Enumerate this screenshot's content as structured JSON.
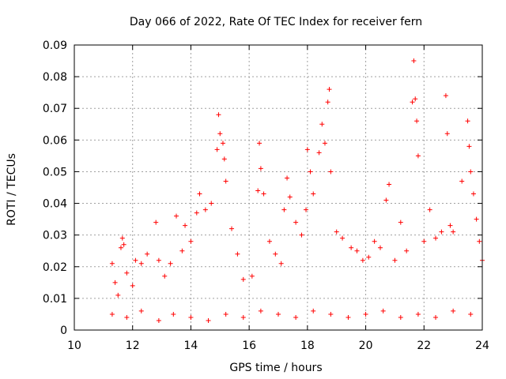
{
  "chart_data": {
    "type": "scatter",
    "title": "Day 066 of 2022, Rate Of TEC Index for receiver fern",
    "xlabel": "GPS time / hours",
    "ylabel": "ROTI / TECUs",
    "xlim": [
      10,
      24
    ],
    "ylim": [
      0,
      0.09
    ],
    "x_ticks": [
      10,
      12,
      14,
      16,
      18,
      20,
      22,
      24
    ],
    "x_tick_labels": [
      "10",
      "12",
      "14",
      "16",
      "18",
      "20",
      "22",
      "24"
    ],
    "y_ticks": [
      0,
      0.01,
      0.02,
      0.03,
      0.04,
      0.05,
      0.06,
      0.07,
      0.08,
      0.09
    ],
    "y_tick_labels": [
      "0",
      "0.01",
      "0.02",
      "0.03",
      "0.04",
      "0.05",
      "0.06",
      "0.07",
      "0.08",
      "0.09"
    ],
    "grid": true,
    "marker": "+",
    "color": "#ff0000",
    "series": [
      {
        "points": [
          [
            11.3,
            0.021
          ],
          [
            11.4,
            0.015
          ],
          [
            11.5,
            0.011
          ],
          [
            11.6,
            0.026
          ],
          [
            11.65,
            0.029
          ],
          [
            11.7,
            0.027
          ],
          [
            11.8,
            0.018
          ],
          [
            12.0,
            0.014
          ],
          [
            12.1,
            0.022
          ],
          [
            12.3,
            0.021
          ],
          [
            12.5,
            0.024
          ],
          [
            12.8,
            0.034
          ],
          [
            12.9,
            0.022
          ],
          [
            13.1,
            0.017
          ],
          [
            13.3,
            0.021
          ],
          [
            13.5,
            0.036
          ],
          [
            13.7,
            0.025
          ],
          [
            13.8,
            0.033
          ],
          [
            14.0,
            0.028
          ],
          [
            14.2,
            0.037
          ],
          [
            14.3,
            0.043
          ],
          [
            14.5,
            0.038
          ],
          [
            14.7,
            0.04
          ],
          [
            14.9,
            0.057
          ],
          [
            14.95,
            0.068
          ],
          [
            15.0,
            0.062
          ],
          [
            15.1,
            0.059
          ],
          [
            15.15,
            0.054
          ],
          [
            15.2,
            0.047
          ],
          [
            15.4,
            0.032
          ],
          [
            15.6,
            0.024
          ],
          [
            15.8,
            0.016
          ],
          [
            16.1,
            0.017
          ],
          [
            16.3,
            0.044
          ],
          [
            16.35,
            0.059
          ],
          [
            16.4,
            0.051
          ],
          [
            16.5,
            0.043
          ],
          [
            16.7,
            0.028
          ],
          [
            16.9,
            0.024
          ],
          [
            17.1,
            0.021
          ],
          [
            17.2,
            0.038
          ],
          [
            17.3,
            0.048
          ],
          [
            17.4,
            0.042
          ],
          [
            17.6,
            0.034
          ],
          [
            17.8,
            0.03
          ],
          [
            17.95,
            0.038
          ],
          [
            18.0,
            0.057
          ],
          [
            18.1,
            0.05
          ],
          [
            18.2,
            0.043
          ],
          [
            18.4,
            0.056
          ],
          [
            18.5,
            0.065
          ],
          [
            18.6,
            0.059
          ],
          [
            18.7,
            0.072
          ],
          [
            18.75,
            0.076
          ],
          [
            18.8,
            0.05
          ],
          [
            19.0,
            0.031
          ],
          [
            19.2,
            0.029
          ],
          [
            19.5,
            0.026
          ],
          [
            19.7,
            0.025
          ],
          [
            19.9,
            0.022
          ],
          [
            20.1,
            0.023
          ],
          [
            20.3,
            0.028
          ],
          [
            20.5,
            0.026
          ],
          [
            20.7,
            0.041
          ],
          [
            20.8,
            0.046
          ],
          [
            21.0,
            0.022
          ],
          [
            21.2,
            0.034
          ],
          [
            21.4,
            0.025
          ],
          [
            21.6,
            0.072
          ],
          [
            21.65,
            0.085
          ],
          [
            21.7,
            0.073
          ],
          [
            21.75,
            0.066
          ],
          [
            21.8,
            0.055
          ],
          [
            22.0,
            0.028
          ],
          [
            22.2,
            0.038
          ],
          [
            22.4,
            0.029
          ],
          [
            22.6,
            0.031
          ],
          [
            22.75,
            0.074
          ],
          [
            22.8,
            0.062
          ],
          [
            22.9,
            0.033
          ],
          [
            23.0,
            0.031
          ],
          [
            23.3,
            0.047
          ],
          [
            23.5,
            0.066
          ],
          [
            23.55,
            0.058
          ],
          [
            23.6,
            0.05
          ],
          [
            23.7,
            0.043
          ],
          [
            23.8,
            0.035
          ],
          [
            23.9,
            0.028
          ],
          [
            24.0,
            0.022
          ],
          [
            11.3,
            0.005
          ],
          [
            11.8,
            0.004
          ],
          [
            12.3,
            0.006
          ],
          [
            12.9,
            0.003
          ],
          [
            13.4,
            0.005
          ],
          [
            14.0,
            0.004
          ],
          [
            14.6,
            0.003
          ],
          [
            15.2,
            0.005
          ],
          [
            15.8,
            0.004
          ],
          [
            16.4,
            0.006
          ],
          [
            17.0,
            0.005
          ],
          [
            17.6,
            0.004
          ],
          [
            18.2,
            0.006
          ],
          [
            18.8,
            0.005
          ],
          [
            19.4,
            0.004
          ],
          [
            20.0,
            0.005
          ],
          [
            20.6,
            0.006
          ],
          [
            21.2,
            0.004
          ],
          [
            21.8,
            0.005
          ],
          [
            22.4,
            0.004
          ],
          [
            23.0,
            0.006
          ],
          [
            23.6,
            0.005
          ]
        ]
      }
    ]
  }
}
